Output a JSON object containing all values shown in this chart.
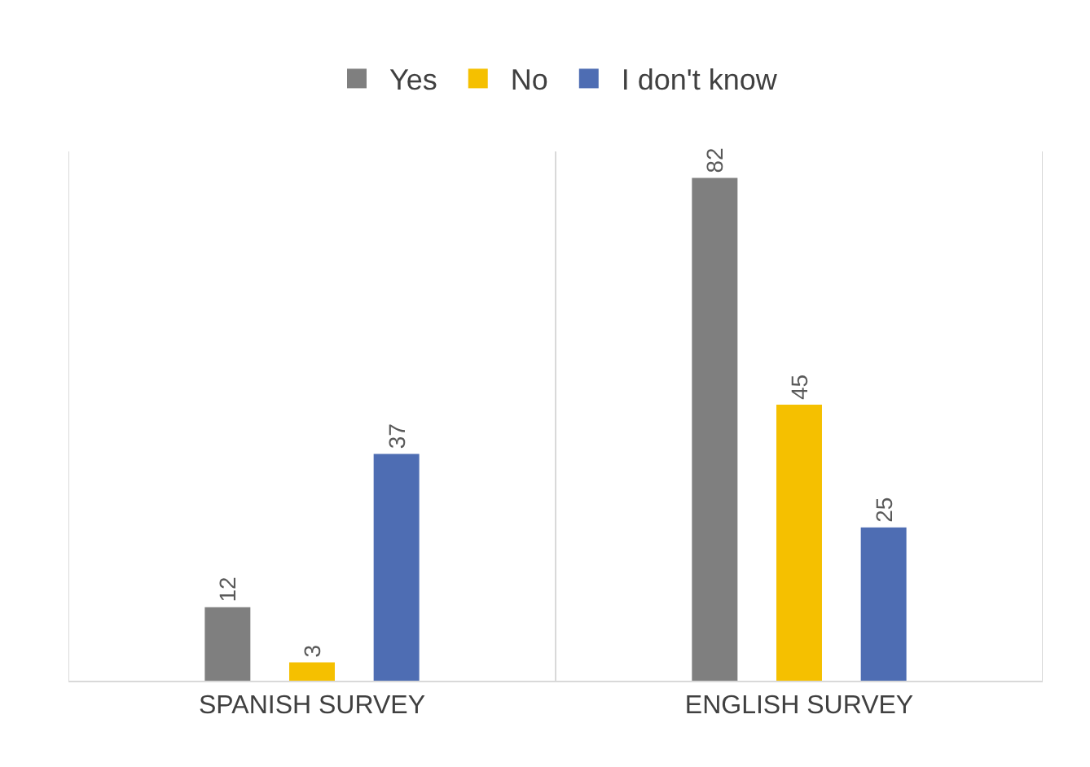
{
  "chart_data": {
    "type": "bar",
    "categories": [
      "SPANISH SURVEY",
      "ENGLISH SURVEY"
    ],
    "series": [
      {
        "name": "Yes",
        "color": "#7f7f7f",
        "values": [
          12,
          82
        ]
      },
      {
        "name": "No",
        "color": "#f5c000",
        "values": [
          3,
          45
        ]
      },
      {
        "name": "I don't know",
        "color": "#4e6db3",
        "values": [
          37,
          25
        ]
      }
    ],
    "data_labels": true,
    "grid": "x",
    "legend": "top"
  }
}
